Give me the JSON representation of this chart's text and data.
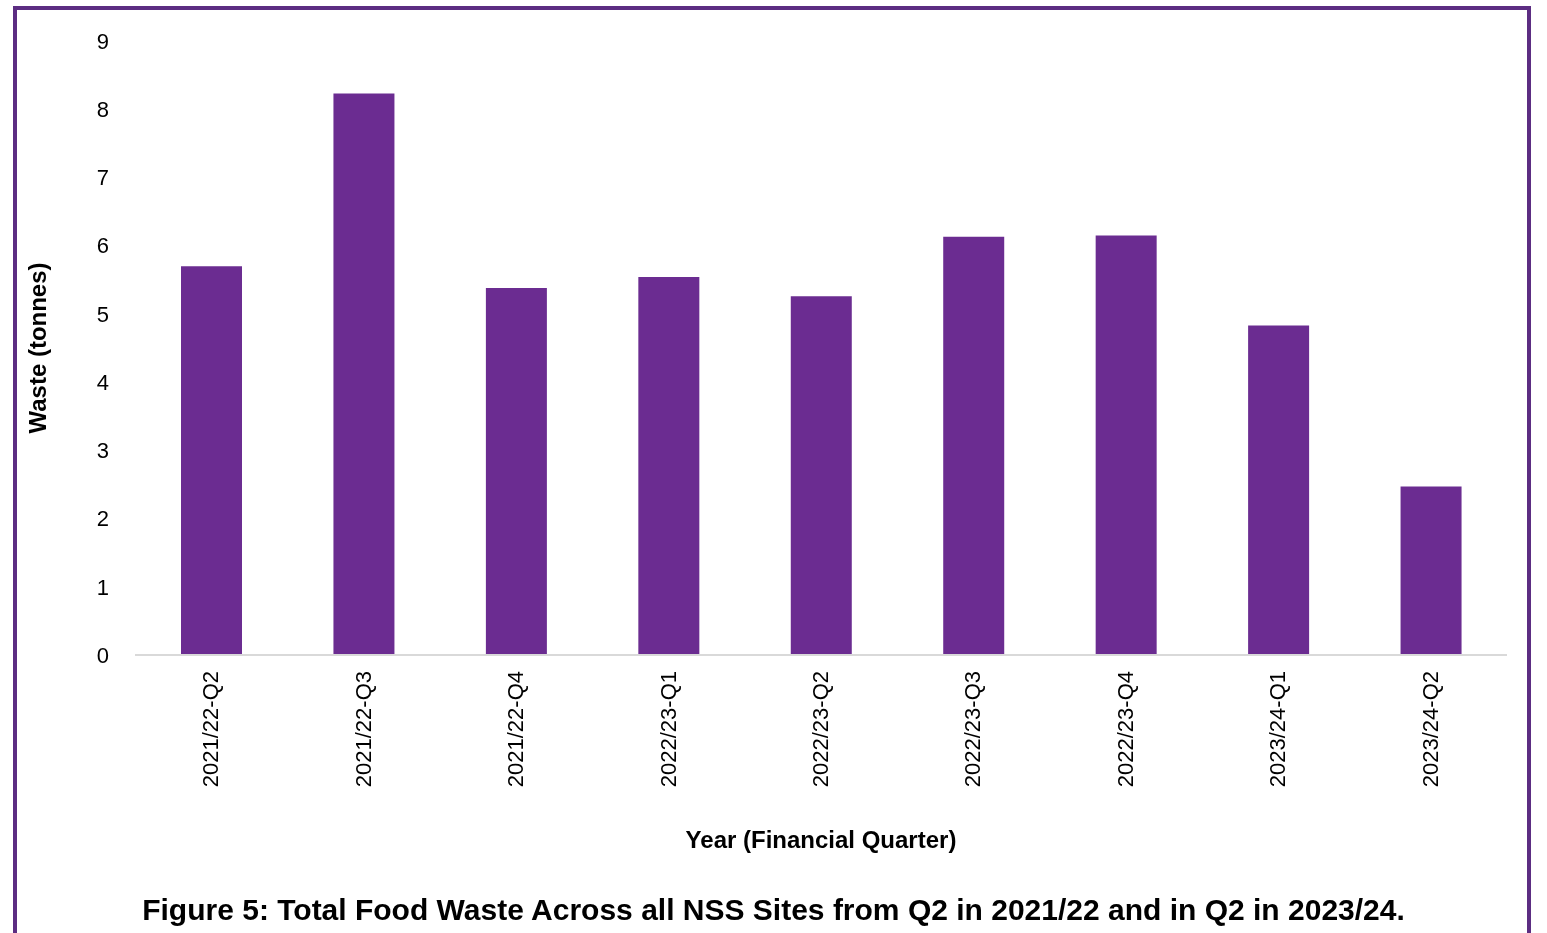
{
  "chart_data": {
    "type": "bar",
    "title": "Figure 5: Total Food Waste Across all NSS Sites from Q2 in 2021/22 and in Q2 in 2023/24.",
    "xlabel": "Year (Financial Quarter)",
    "ylabel": "Waste (tonnes)",
    "categories": [
      "2021/22-Q2",
      "2021/22-Q3",
      "2021/22-Q4",
      "2022/23-Q1",
      "2022/23-Q2",
      "2022/23-Q3",
      "2022/23-Q4",
      "2023/24-Q1",
      "2023/24-Q2"
    ],
    "values": [
      5.7,
      8.23,
      5.38,
      5.54,
      5.26,
      6.13,
      6.15,
      4.83,
      2.47
    ],
    "color": "#6b2c91",
    "ylim": [
      0,
      9
    ],
    "yticks": [
      0,
      1,
      2,
      3,
      4,
      5,
      6,
      7,
      8,
      9
    ],
    "grid": false,
    "legend": false
  }
}
